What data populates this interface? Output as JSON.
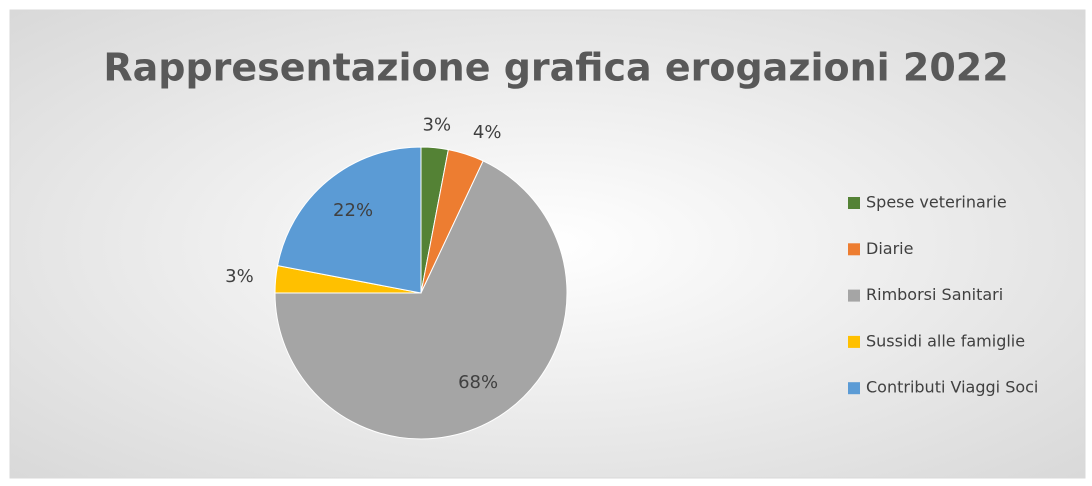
{
  "chart_data": {
    "type": "pie",
    "title": "Rappresentazione grafica erogazioni 2022",
    "categories": [
      "Spese veterinarie",
      "Diarie",
      "Rimborsi Sanitari",
      "Sussidi alle famiglie",
      "Contributi Viaggi Soci"
    ],
    "values": [
      3,
      4,
      68,
      3,
      22
    ],
    "value_labels": [
      "3%",
      "4%",
      "68%",
      "3%",
      "22%"
    ],
    "colors": [
      "#548235",
      "#ed7d31",
      "#a5a5a5",
      "#ffc000",
      "#5b9bd5"
    ],
    "legend": "right"
  }
}
